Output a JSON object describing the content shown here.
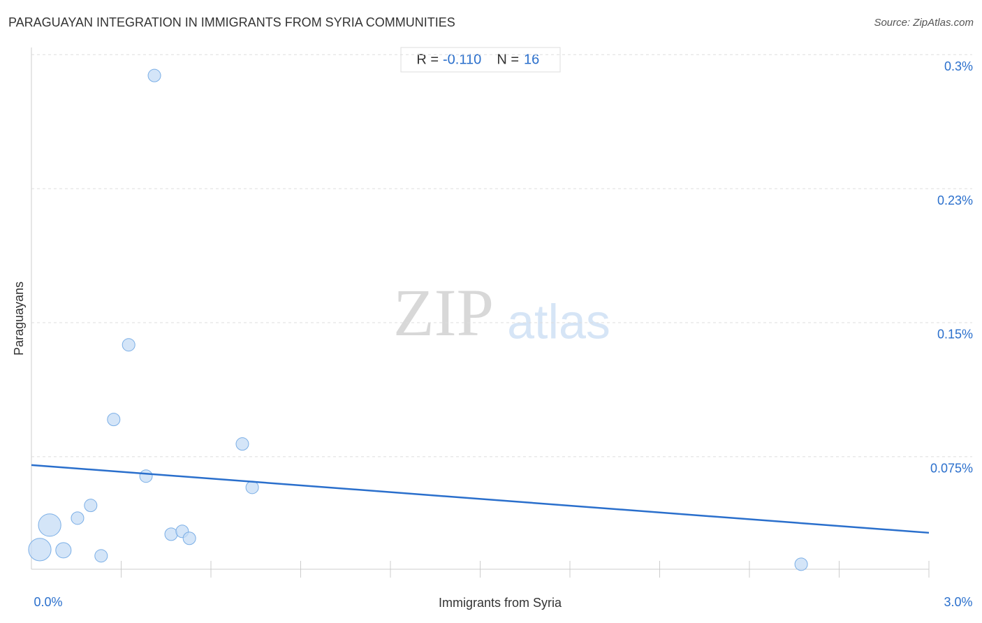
{
  "chart_data": {
    "type": "scatter",
    "title": "PARAGUAYAN INTEGRATION IN IMMIGRANTS FROM SYRIA COMMUNITIES",
    "source": "Source: ZipAtlas.com",
    "xlabel": "Immigrants from Syria",
    "ylabel": "Paraguayans",
    "watermark": [
      "ZIP",
      "atlas"
    ],
    "stats": [
      {
        "label": "R =",
        "value": "-0.110"
      },
      {
        "label": "N =",
        "value": "16"
      }
    ],
    "color": "#c5dcf5",
    "edge_color": "#7aaee6",
    "trend_color": "#2a6fcc",
    "xlim": [
      0,
      3
    ],
    "ylim": [
      0.012,
      0.304
    ],
    "xticks": [
      {
        "value": 0,
        "label": "0.0%"
      },
      {
        "value": 3,
        "label": "3.0%"
      }
    ],
    "xminor_ticks": [
      0.3,
      0.6,
      0.9,
      1.2,
      1.5,
      1.8,
      2.1,
      2.4,
      2.7,
      3
    ],
    "yticks": [
      {
        "value": 0.3,
        "label": "0.3%"
      },
      {
        "value": 0.225,
        "label": "0.23%"
      },
      {
        "value": 0.15,
        "label": "0.15%"
      },
      {
        "value": 0.075,
        "label": "0.075%"
      }
    ],
    "grid": true,
    "x": [
      0.028,
      0.061,
      0.107,
      0.154,
      0.198,
      0.233,
      0.275,
      0.325,
      0.383,
      0.411,
      0.467,
      0.504,
      0.528,
      0.705,
      0.738,
      2.573
    ],
    "values": [
      0.023,
      0.0367,
      0.0226,
      0.0406,
      0.0477,
      0.0195,
      0.0958,
      0.1376,
      0.0641,
      0.2883,
      0.0316,
      0.0332,
      0.0293,
      0.0821,
      0.0578,
      0.0148
    ],
    "sizes": [
      3.2,
      3.2,
      1.5,
      1,
      1,
      1,
      1,
      1,
      1,
      1,
      1,
      1,
      1,
      1,
      1,
      1
    ],
    "trendline": {
      "x": [
        0,
        3
      ],
      "y": [
        0.0703,
        0.0324
      ]
    }
  }
}
